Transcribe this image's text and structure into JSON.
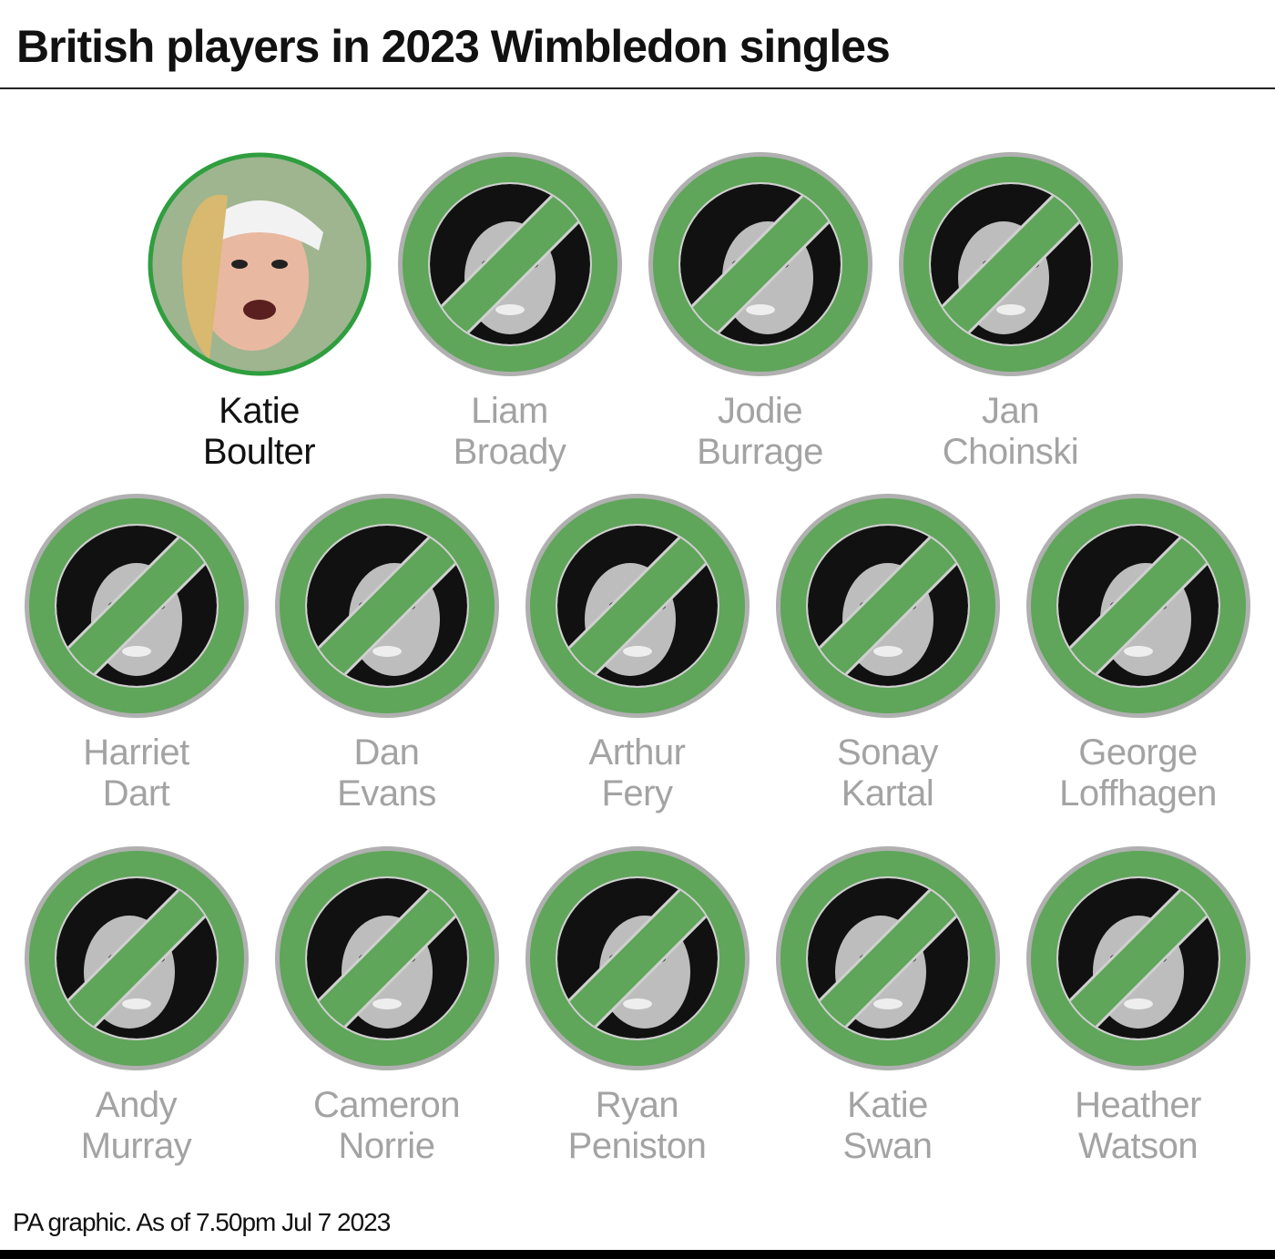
{
  "title": "British players in 2023 Wimbledon singles",
  "footer": "PA graphic. As of 7.50pm Jul 7 2023",
  "colors": {
    "active_ring": "#2f9e3f",
    "eliminated_green": "#5fa55a",
    "eliminated_ring": "#b0b0b0",
    "inactive_text": "#a3a3a3",
    "active_text": "#111111"
  },
  "players": [
    {
      "first": "Katie",
      "last": "Boulter",
      "status": "active",
      "icon": "player-photo"
    },
    {
      "first": "Liam",
      "last": "Broady",
      "status": "eliminated",
      "icon": "no-entry-icon"
    },
    {
      "first": "Jodie",
      "last": "Burrage",
      "status": "eliminated",
      "icon": "no-entry-icon"
    },
    {
      "first": "Jan",
      "last": "Choinski",
      "status": "eliminated",
      "icon": "no-entry-icon"
    },
    {
      "first": "Harriet",
      "last": "Dart",
      "status": "eliminated",
      "icon": "no-entry-icon"
    },
    {
      "first": "Dan",
      "last": "Evans",
      "status": "eliminated",
      "icon": "no-entry-icon"
    },
    {
      "first": "Arthur",
      "last": "Fery",
      "status": "eliminated",
      "icon": "no-entry-icon"
    },
    {
      "first": "Sonay",
      "last": "Kartal",
      "status": "eliminated",
      "icon": "no-entry-icon"
    },
    {
      "first": "George",
      "last": "Loffhagen",
      "status": "eliminated",
      "icon": "no-entry-icon"
    },
    {
      "first": "Andy",
      "last": "Murray",
      "status": "eliminated",
      "icon": "no-entry-icon"
    },
    {
      "first": "Cameron",
      "last": "Norrie",
      "status": "eliminated",
      "icon": "no-entry-icon"
    },
    {
      "first": "Ryan",
      "last": "Peniston",
      "status": "eliminated",
      "icon": "no-entry-icon"
    },
    {
      "first": "Katie",
      "last": "Swan",
      "status": "eliminated",
      "icon": "no-entry-icon"
    },
    {
      "first": "Heather",
      "last": "Watson",
      "status": "eliminated",
      "icon": "no-entry-icon"
    }
  ]
}
